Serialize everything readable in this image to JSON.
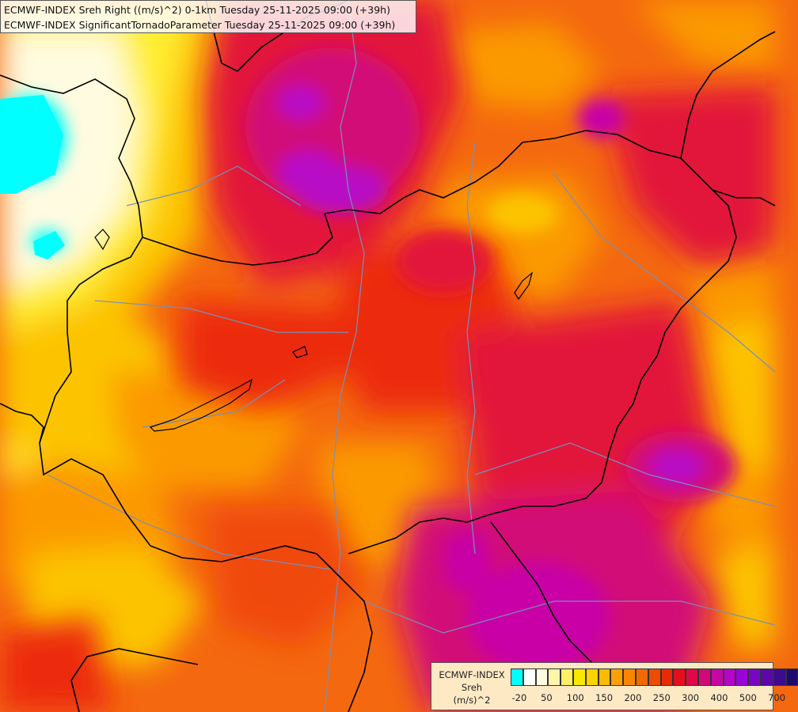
{
  "title": {
    "line1": "ECMWF-INDEX Sreh Right ((m/s)^2) 0-1km Tuesday 25-11-2025 09:00 (+39h)",
    "line2": "ECMWF-INDEX SignificantTornadoParameter Tuesday 25-11-2025 09:00 (+39h)"
  },
  "legend": {
    "title_line1": "ECMWF-INDEX",
    "title_line2": "Sreh",
    "title_line3": "(m/s)^2",
    "colors": [
      "#00ffff",
      "#ffffff",
      "#fffbe0",
      "#fff4a8",
      "#ffee66",
      "#fbe800",
      "#fcd200",
      "#fbb900",
      "#fba000",
      "#f88600",
      "#f46800",
      "#f04a00",
      "#ec2a00",
      "#e60d1f",
      "#dd0a48",
      "#d4087a",
      "#c806a6",
      "#b604cc",
      "#9a04d8",
      "#7a06c4",
      "#5c08a8",
      "#3d0a90",
      "#1e0a6e"
    ],
    "tick_labels": [
      "-20",
      "50",
      "100",
      "150",
      "200",
      "250",
      "300",
      "400",
      "500",
      "700"
    ]
  },
  "map_colors": {
    "cyan": "#00ffff",
    "pale": "#fffbe0",
    "yellow": "#ffee33",
    "gold": "#fcc400",
    "orange": "#fb9a00",
    "dark_orange": "#f46c0a",
    "red_orange": "#f0480a",
    "red": "#ec2a0a",
    "crimson": "#e2143a",
    "magenta": "#d20a78",
    "purple": "#b808c6",
    "violet": "#a00cd6"
  }
}
